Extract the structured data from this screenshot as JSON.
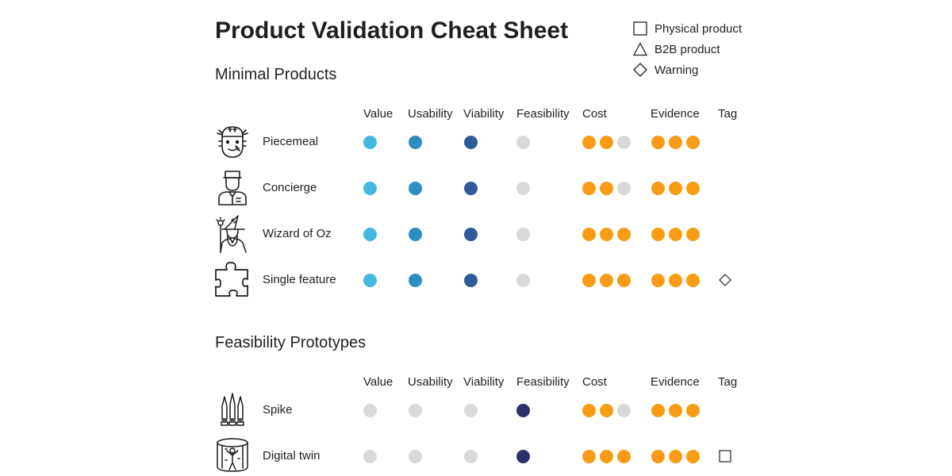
{
  "title": "Product Validation Cheat Sheet",
  "legend": [
    {
      "shape": "square",
      "label": "Physical product"
    },
    {
      "shape": "triangle",
      "label": "B2B product"
    },
    {
      "shape": "diamond",
      "label": "Warning"
    }
  ],
  "colors": {
    "value": "#45b8dd",
    "usability": "#2c8dc2",
    "viability": "#2f5b9a",
    "feasibility_active": "#2b2f6b",
    "inactive": "#d9d9d9",
    "cost_evidence": "#f79c14"
  },
  "sections": [
    {
      "title": "Minimal Products",
      "headers": {
        "value": "Value",
        "usability": "Usability",
        "viability": "Viability",
        "feasibility": "Feasibility",
        "cost": "Cost",
        "evidence": "Evidence",
        "tag": "Tag"
      },
      "rows": [
        {
          "name": "Piecemeal",
          "icon": "patchwork-face-icon",
          "value": true,
          "usability": true,
          "viability": true,
          "feasibility": false,
          "cost": 2,
          "evidence": 3,
          "tag": ""
        },
        {
          "name": "Concierge",
          "icon": "concierge-icon",
          "value": true,
          "usability": true,
          "viability": true,
          "feasibility": false,
          "cost": 2,
          "evidence": 3,
          "tag": ""
        },
        {
          "name": "Wizard of Oz",
          "icon": "wizard-icon",
          "value": true,
          "usability": true,
          "viability": true,
          "feasibility": false,
          "cost": 3,
          "evidence": 3,
          "tag": ""
        },
        {
          "name": "Single feature",
          "icon": "puzzle-piece-icon",
          "value": true,
          "usability": true,
          "viability": true,
          "feasibility": false,
          "cost": 3,
          "evidence": 3,
          "tag": "diamond"
        }
      ]
    },
    {
      "title": "Feasibility Prototypes",
      "headers": {
        "value": "Value",
        "usability": "Usability",
        "viability": "Viability",
        "feasibility": "Feasibility",
        "cost": "Cost",
        "evidence": "Evidence",
        "tag": "Tag"
      },
      "rows": [
        {
          "name": "Spike",
          "icon": "spikes-icon",
          "value": false,
          "usability": false,
          "viability": false,
          "feasibility": true,
          "cost": 2,
          "evidence": 3,
          "tag": ""
        },
        {
          "name": "Digital twin",
          "icon": "digital-twin-icon",
          "value": false,
          "usability": false,
          "viability": false,
          "feasibility": true,
          "cost": 3,
          "evidence": 3,
          "tag": "square"
        }
      ]
    }
  ]
}
